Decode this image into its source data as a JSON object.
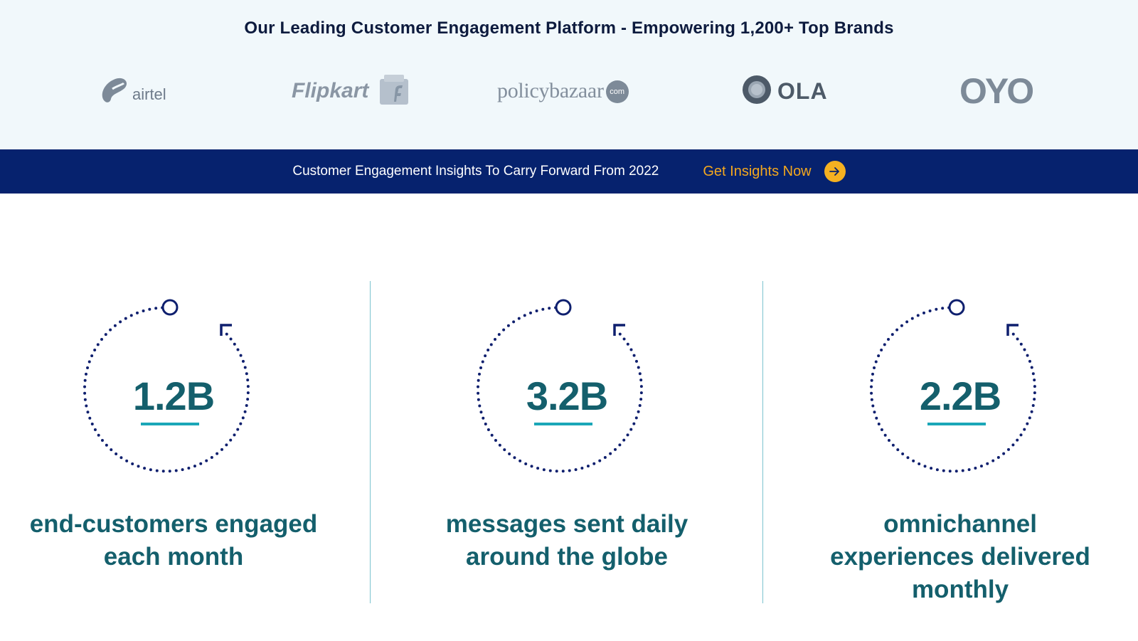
{
  "header": {
    "headline": "Our Leading Customer Engagement Platform - Empowering 1,200+ Top Brands"
  },
  "brands": [
    {
      "name": "airtel",
      "icon": "airtel-swirl-icon"
    },
    {
      "name": "Flipkart",
      "icon": "flipkart-bag-icon"
    },
    {
      "name": "policybazaar",
      "badge": "com"
    },
    {
      "name": "OLA",
      "icon": "ola-ring-icon"
    },
    {
      "name": "OYO"
    }
  ],
  "promo": {
    "text": "Customer Engagement Insights To Carry Forward From 2022",
    "cta_label": "Get Insights Now",
    "cta_icon": "arrow-right-icon"
  },
  "stats": [
    {
      "value": "1.2B",
      "label_lines": [
        "end-customers engaged",
        "each month"
      ],
      "icon": "dotted-cycle-icon"
    },
    {
      "value": "3.2B",
      "label_lines": [
        "messages sent daily",
        "around the globe"
      ],
      "icon": "dotted-cycle-icon"
    },
    {
      "value": "2.2B",
      "label_lines": [
        "omnichannel",
        "experiences delivered",
        "monthly"
      ],
      "icon": "dotted-cycle-icon"
    }
  ],
  "colors": {
    "navy": "#06226e",
    "teal_text": "#145f6c",
    "accent_teal": "#1ba7b8",
    "cta_orange": "#f4a81e",
    "band_bg": "#f1f8fb",
    "logo_gray": "#7d8a98"
  }
}
